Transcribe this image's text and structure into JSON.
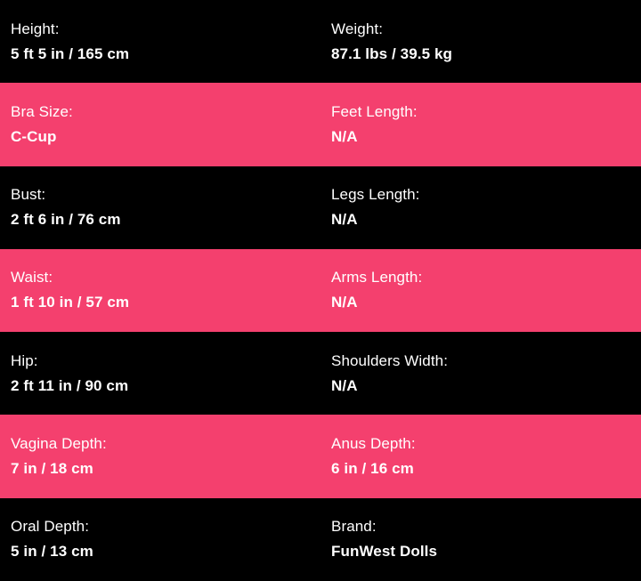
{
  "theme": {
    "row_black": "#000000",
    "row_pink": "#F4406E",
    "text_color": "#FFFFFF"
  },
  "spec_table": {
    "rows": [
      {
        "cells": [
          {
            "label": "Height:",
            "value": "5 ft 5 in / 165 cm"
          },
          {
            "label": "Weight:",
            "value": "87.1 lbs / 39.5 kg"
          }
        ]
      },
      {
        "cells": [
          {
            "label": "Bra Size:",
            "value": "C-Cup"
          },
          {
            "label": "Feet Length:",
            "value": "N/A"
          }
        ]
      },
      {
        "cells": [
          {
            "label": "Bust:",
            "value": "2 ft 6 in / 76 cm"
          },
          {
            "label": "Legs Length:",
            "value": "N/A"
          }
        ]
      },
      {
        "cells": [
          {
            "label": "Waist:",
            "value": "1 ft 10 in / 57 cm"
          },
          {
            "label": "Arms Length:",
            "value": "N/A"
          }
        ]
      },
      {
        "cells": [
          {
            "label": "Hip:",
            "value": "2 ft 11 in / 90 cm"
          },
          {
            "label": "Shoulders Width:",
            "value": "N/A"
          }
        ]
      },
      {
        "cells": [
          {
            "label": "Vagina Depth:",
            "value": "7 in / 18 cm"
          },
          {
            "label": "Anus Depth:",
            "value": "6 in / 16 cm"
          }
        ]
      },
      {
        "cells": [
          {
            "label": "Oral Depth:",
            "value": "5 in / 13 cm"
          },
          {
            "label": "Brand:",
            "value": "FunWest Dolls"
          }
        ]
      }
    ]
  }
}
